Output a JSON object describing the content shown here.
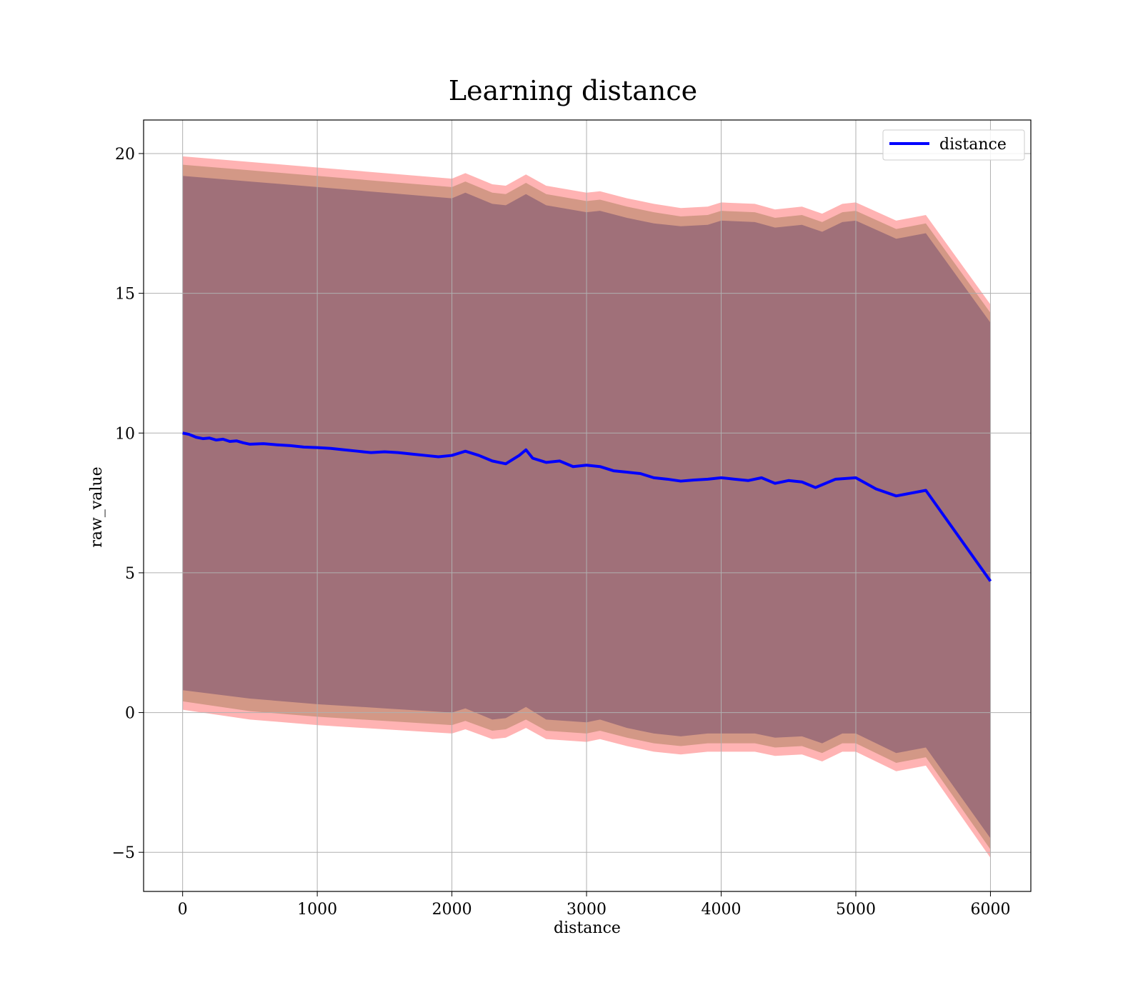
{
  "chart_data": {
    "type": "line",
    "title": "Learning distance",
    "xlabel": "distance",
    "ylabel": "raw_value",
    "xlim": [
      -290,
      6300
    ],
    "ylim": [
      -6.4,
      21.2
    ],
    "xticks": [
      "0",
      "1000",
      "2000",
      "3000",
      "4000",
      "5000",
      "6000"
    ],
    "yticks": [
      "−5",
      "0",
      "5",
      "10",
      "15",
      "20"
    ],
    "grid": true,
    "legend_position": "top-right",
    "colors": {
      "line": "#0000ff",
      "band_outer": "#ff9999",
      "band_middle": "#c8917a",
      "band_inner": "#a07079"
    },
    "series": [
      {
        "name": "distance",
        "x": [
          0,
          50,
          100,
          150,
          200,
          250,
          300,
          350,
          400,
          450,
          500,
          600,
          700,
          800,
          900,
          1000,
          1100,
          1200,
          1300,
          1400,
          1500,
          1600,
          1700,
          1800,
          1900,
          2000,
          2100,
          2200,
          2300,
          2400,
          2500,
          2550,
          2600,
          2700,
          2800,
          2900,
          3000,
          3100,
          3200,
          3300,
          3400,
          3500,
          3600,
          3700,
          3800,
          3900,
          4000,
          4100,
          4200,
          4300,
          4400,
          4500,
          4600,
          4700,
          4850,
          5000,
          5150,
          5300,
          5520,
          6000
        ],
        "values": [
          10.0,
          9.95,
          9.85,
          9.8,
          9.82,
          9.75,
          9.78,
          9.7,
          9.72,
          9.65,
          9.6,
          9.62,
          9.58,
          9.55,
          9.5,
          9.48,
          9.45,
          9.4,
          9.35,
          9.3,
          9.33,
          9.3,
          9.25,
          9.2,
          9.15,
          9.2,
          9.35,
          9.2,
          9.0,
          8.9,
          9.2,
          9.4,
          9.1,
          8.95,
          9.0,
          8.8,
          8.85,
          8.8,
          8.65,
          8.6,
          8.55,
          8.4,
          8.35,
          8.28,
          8.32,
          8.35,
          8.4,
          8.35,
          8.3,
          8.4,
          8.2,
          8.3,
          8.25,
          8.05,
          8.35,
          8.4,
          8.0,
          7.75,
          7.95,
          4.7
        ]
      }
    ],
    "bands": [
      {
        "name": "outer",
        "x": [
          0,
          500,
          1000,
          1500,
          2000,
          2100,
          2300,
          2400,
          2550,
          2700,
          3000,
          3100,
          3300,
          3500,
          3700,
          3900,
          4000,
          4250,
          4400,
          4600,
          4750,
          4900,
          5000,
          5300,
          5520,
          6000
        ],
        "lower": [
          0.1,
          -0.25,
          -0.45,
          -0.6,
          -0.75,
          -0.6,
          -0.95,
          -0.9,
          -0.55,
          -0.95,
          -1.05,
          -0.95,
          -1.2,
          -1.4,
          -1.5,
          -1.4,
          -1.4,
          -1.4,
          -1.55,
          -1.5,
          -1.75,
          -1.4,
          -1.4,
          -2.1,
          -1.9,
          -5.2
        ],
        "upper": [
          19.9,
          19.7,
          19.5,
          19.3,
          19.1,
          19.3,
          18.9,
          18.85,
          19.25,
          18.85,
          18.6,
          18.65,
          18.4,
          18.2,
          18.05,
          18.1,
          18.25,
          18.2,
          18.0,
          18.1,
          17.85,
          18.2,
          18.25,
          17.6,
          17.8,
          14.6
        ]
      },
      {
        "name": "middle",
        "x": [
          0,
          500,
          1000,
          1500,
          2000,
          2100,
          2300,
          2400,
          2550,
          2700,
          3000,
          3100,
          3300,
          3500,
          3700,
          3900,
          4000,
          4250,
          4400,
          4600,
          4750,
          4900,
          5000,
          5300,
          5520,
          6000
        ],
        "lower": [
          0.4,
          0.05,
          -0.15,
          -0.3,
          -0.45,
          -0.3,
          -0.65,
          -0.6,
          -0.25,
          -0.65,
          -0.75,
          -0.65,
          -0.9,
          -1.1,
          -1.2,
          -1.1,
          -1.1,
          -1.1,
          -1.25,
          -1.2,
          -1.45,
          -1.1,
          -1.1,
          -1.8,
          -1.6,
          -4.9
        ],
        "upper": [
          19.6,
          19.4,
          19.2,
          19.0,
          18.8,
          19.0,
          18.6,
          18.55,
          18.95,
          18.55,
          18.3,
          18.35,
          18.1,
          17.9,
          17.75,
          17.8,
          17.95,
          17.9,
          17.7,
          17.8,
          17.55,
          17.9,
          17.95,
          17.3,
          17.5,
          14.3
        ]
      },
      {
        "name": "inner",
        "x": [
          0,
          500,
          1000,
          1500,
          2000,
          2100,
          2300,
          2400,
          2550,
          2700,
          3000,
          3100,
          3300,
          3500,
          3700,
          3900,
          4000,
          4250,
          4400,
          4600,
          4750,
          4900,
          5000,
          5300,
          5520,
          6000
        ],
        "lower": [
          0.8,
          0.5,
          0.3,
          0.15,
          0.0,
          0.15,
          -0.25,
          -0.2,
          0.2,
          -0.25,
          -0.35,
          -0.25,
          -0.55,
          -0.75,
          -0.85,
          -0.75,
          -0.75,
          -0.75,
          -0.9,
          -0.85,
          -1.1,
          -0.75,
          -0.75,
          -1.45,
          -1.25,
          -4.5
        ],
        "upper": [
          19.2,
          19.0,
          18.8,
          18.6,
          18.4,
          18.6,
          18.2,
          18.15,
          18.55,
          18.15,
          17.9,
          17.95,
          17.7,
          17.5,
          17.4,
          17.45,
          17.6,
          17.55,
          17.35,
          17.45,
          17.2,
          17.55,
          17.6,
          16.95,
          17.15,
          13.95
        ]
      }
    ]
  }
}
